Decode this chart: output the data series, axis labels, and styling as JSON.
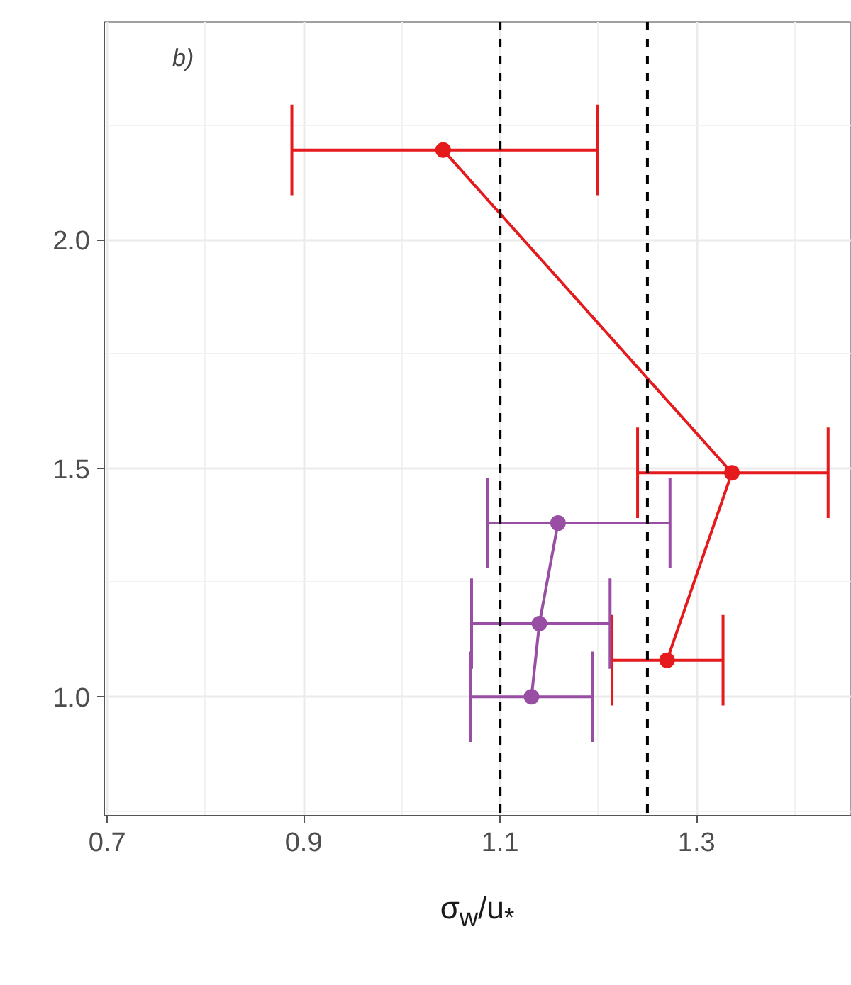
{
  "chart_data": {
    "type": "line",
    "xlabel": "σ$_{w}$/u$_{*}$",
    "annotations": [
      "b)"
    ],
    "series": [
      {
        "color": "#e41a1c",
        "x": [
          1.042,
          1.336,
          1.27
        ],
        "values": [
          2.196,
          1.49,
          1.08
        ],
        "xerrors": [
          [
            0.888,
            1.199
          ],
          [
            1.24,
            1.434
          ],
          [
            1.214,
            1.327
          ]
        ]
      },
      {
        "color": "#984ea3",
        "x": [
          1.159,
          1.14,
          1.132
        ],
        "values": [
          1.38,
          1.16,
          1.0
        ],
        "xerrors": [
          [
            1.087,
            1.273
          ],
          [
            1.071,
            1.212
          ],
          [
            1.07,
            1.194
          ]
        ]
      }
    ],
    "xlim": [
      0.697,
      1.458
    ],
    "ylim": [
      0.74,
      2.476
    ],
    "xticks": [
      0.7,
      0.9,
      1.1,
      1.3
    ],
    "yticks": [
      {
        "value": 1.0,
        "label": "1.0"
      },
      {
        "value": 1.5,
        "label": "1.5"
      },
      {
        "value": 2.0,
        "label": "2.0"
      }
    ],
    "ref_lines": [
      {
        "axis": "x",
        "value": 1.1,
        "line_style": "dashed",
        "color": "#000000"
      },
      {
        "axis": "x",
        "value": 1.25,
        "line_style": "dashed",
        "color": "#000000"
      }
    ],
    "grid": true,
    "marker": "circle",
    "line_style": "solid"
  }
}
